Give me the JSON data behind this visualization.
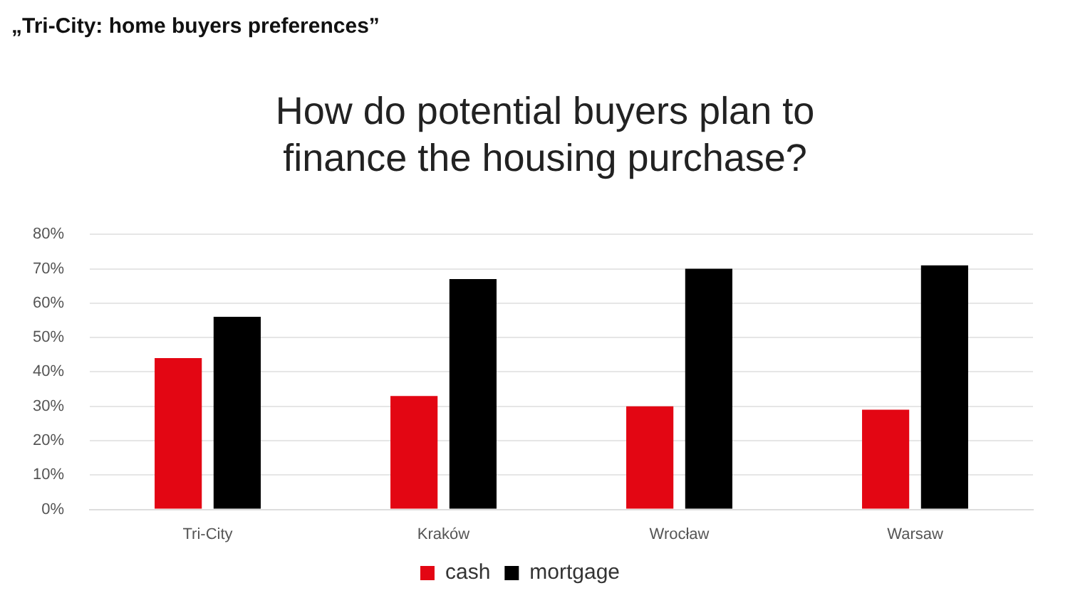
{
  "chart_data": {
    "type": "bar",
    "title": "How do potential buyers plan to finance the housing purchase?",
    "annotations": [
      "„Tri-City: home buyers preferences”"
    ],
    "categories": [
      "Tri-City",
      "Kraków",
      "Wrocław",
      "Warsaw"
    ],
    "series": [
      {
        "name": "cash",
        "color": "#e30613",
        "values": [
          44,
          33,
          30,
          29
        ]
      },
      {
        "name": "mortgage",
        "color": "#000000",
        "values": [
          56,
          67,
          70,
          71
        ]
      }
    ],
    "ylim": [
      0,
      80
    ],
    "yticks": [
      {
        "value": 0,
        "label": "0%"
      },
      {
        "value": 10,
        "label": "10%"
      },
      {
        "value": 20,
        "label": "20%"
      },
      {
        "value": 30,
        "label": "30%"
      },
      {
        "value": 40,
        "label": "40%"
      },
      {
        "value": 50,
        "label": "50%"
      },
      {
        "value": 60,
        "label": "60%"
      },
      {
        "value": 70,
        "label": "70%"
      },
      {
        "value": 80,
        "label": "80%"
      }
    ],
    "grid": "y",
    "legend": "bottom"
  }
}
